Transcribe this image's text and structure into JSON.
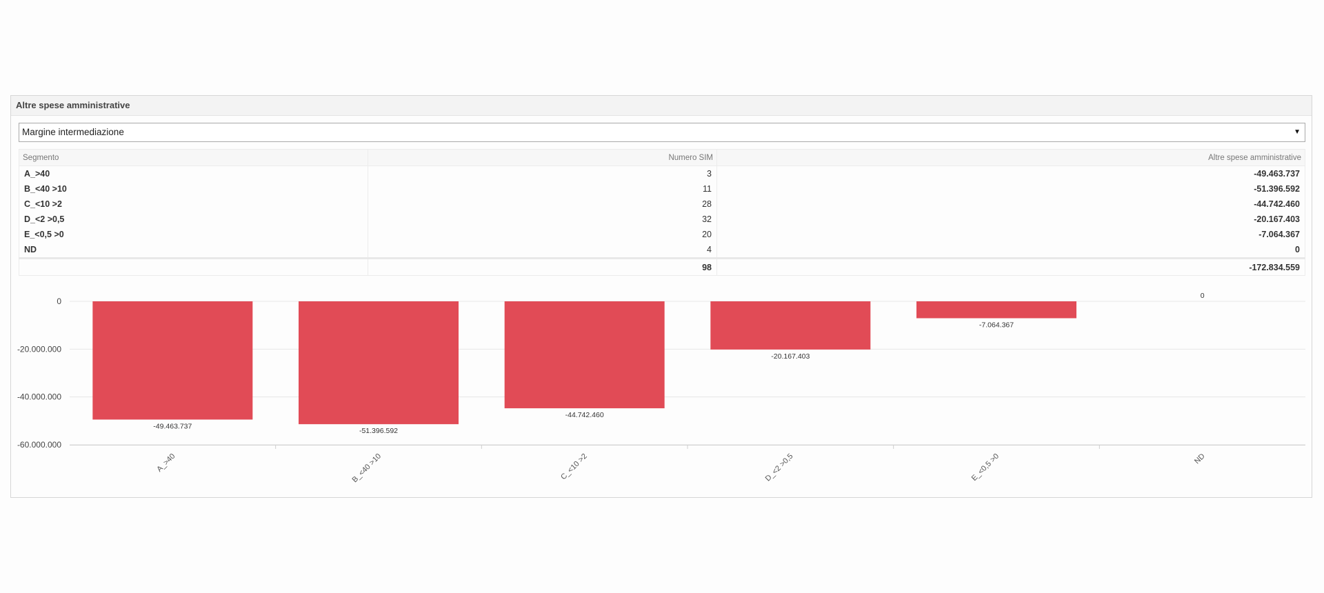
{
  "panel": {
    "title": "Altre spese amministrative"
  },
  "selector": {
    "value": "Margine intermediazione"
  },
  "table": {
    "headers": [
      "Segmento",
      "Numero SIM",
      "Altre spese amministrative"
    ],
    "rows": [
      {
        "segmento": "A_>40",
        "numero": "3",
        "spese": "-49.463.737"
      },
      {
        "segmento": "B_<40 >10",
        "numero": "11",
        "spese": "-51.396.592"
      },
      {
        "segmento": "C_<10 >2",
        "numero": "28",
        "spese": "-44.742.460"
      },
      {
        "segmento": "D_<2 >0,5",
        "numero": "32",
        "spese": "-20.167.403"
      },
      {
        "segmento": "E_<0,5 >0",
        "numero": "20",
        "spese": "-7.064.367"
      },
      {
        "segmento": "ND",
        "numero": "4",
        "spese": "0"
      }
    ],
    "total": {
      "segmento": "",
      "numero": "98",
      "spese": "-172.834.559"
    }
  },
  "colors": {
    "bar": "#e14b56",
    "grid": "#e6e6e6"
  },
  "chart_data": {
    "type": "bar",
    "categories": [
      "A_>40",
      "B_<40 >10",
      "C_<10 >2",
      "D_<2 >0,5",
      "E_<0,5 >0",
      "ND"
    ],
    "values": [
      -49463737,
      -51396592,
      -44742460,
      -20167403,
      -7064367,
      0
    ],
    "data_labels": [
      "-49.463.737",
      "-51.396.592",
      "-44.742.460",
      "-20.167.403",
      "-7.064.367",
      "0"
    ],
    "y_ticks": [
      0,
      -20000000,
      -40000000,
      -60000000
    ],
    "y_tick_labels": [
      "0",
      "-20.000.000",
      "-40.000.000",
      "-60.000.000"
    ],
    "ylim": [
      -60000000,
      0
    ],
    "title": "",
    "xlabel": "",
    "ylabel": "",
    "grid": true,
    "legend": "none"
  }
}
